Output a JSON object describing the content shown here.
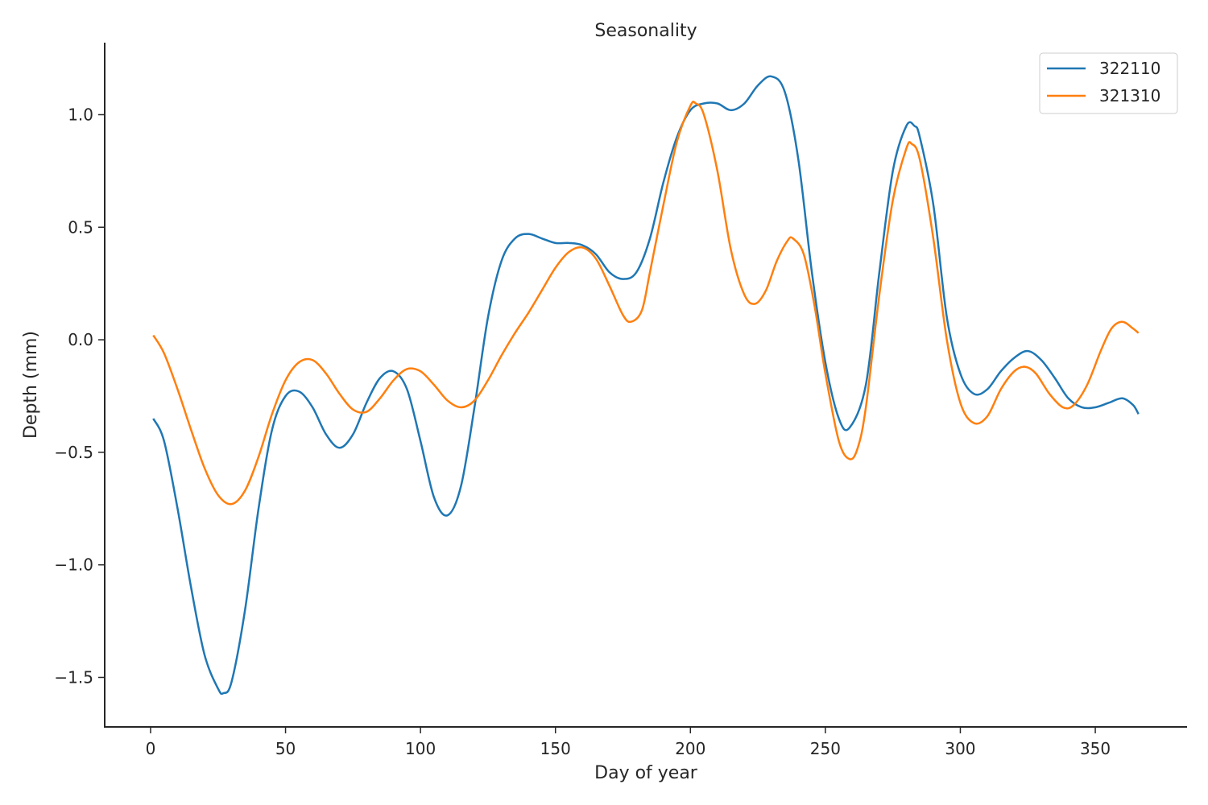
{
  "chart_data": {
    "type": "line",
    "title": "Seasonality",
    "xlabel": "Day of year",
    "ylabel": "Depth (mm)",
    "xlim": [
      -17,
      384
    ],
    "ylim": [
      -1.72,
      1.32
    ],
    "xticks": [
      0,
      50,
      100,
      150,
      200,
      250,
      300,
      350
    ],
    "yticks": [
      -1.5,
      -1.0,
      -0.5,
      0.0,
      0.5,
      1.0
    ],
    "ytick_labels": [
      "−1.5",
      "−1.0",
      "−0.5",
      "0.0",
      "0.5",
      "1.0"
    ],
    "xtick_labels": [
      "0",
      "50",
      "100",
      "150",
      "200",
      "250",
      "300",
      "350"
    ],
    "grid": false,
    "legend_position": "top-right",
    "colors": {
      "series_1": "#1f77b4",
      "series_2": "#ff7f0e",
      "axis": "#262626"
    },
    "series": [
      {
        "name": "322110",
        "color": "#1f77b4",
        "points": [
          [
            1,
            -0.35
          ],
          [
            5,
            -0.45
          ],
          [
            10,
            -0.75
          ],
          [
            15,
            -1.1
          ],
          [
            20,
            -1.4
          ],
          [
            25,
            -1.55
          ],
          [
            27,
            -1.57
          ],
          [
            30,
            -1.52
          ],
          [
            35,
            -1.2
          ],
          [
            40,
            -0.75
          ],
          [
            45,
            -0.4
          ],
          [
            50,
            -0.25
          ],
          [
            55,
            -0.23
          ],
          [
            60,
            -0.3
          ],
          [
            65,
            -0.42
          ],
          [
            70,
            -0.48
          ],
          [
            75,
            -0.42
          ],
          [
            80,
            -0.28
          ],
          [
            85,
            -0.17
          ],
          [
            90,
            -0.14
          ],
          [
            95,
            -0.22
          ],
          [
            100,
            -0.45
          ],
          [
            105,
            -0.7
          ],
          [
            110,
            -0.78
          ],
          [
            115,
            -0.65
          ],
          [
            120,
            -0.3
          ],
          [
            125,
            0.1
          ],
          [
            130,
            0.35
          ],
          [
            135,
            0.45
          ],
          [
            140,
            0.47
          ],
          [
            145,
            0.45
          ],
          [
            150,
            0.43
          ],
          [
            155,
            0.43
          ],
          [
            160,
            0.42
          ],
          [
            165,
            0.38
          ],
          [
            170,
            0.3
          ],
          [
            175,
            0.27
          ],
          [
            180,
            0.3
          ],
          [
            185,
            0.45
          ],
          [
            190,
            0.7
          ],
          [
            195,
            0.9
          ],
          [
            200,
            1.02
          ],
          [
            205,
            1.05
          ],
          [
            210,
            1.05
          ],
          [
            215,
            1.02
          ],
          [
            220,
            1.05
          ],
          [
            225,
            1.13
          ],
          [
            230,
            1.17
          ],
          [
            235,
            1.1
          ],
          [
            240,
            0.8
          ],
          [
            245,
            0.3
          ],
          [
            250,
            -0.1
          ],
          [
            255,
            -0.35
          ],
          [
            259,
            -0.39
          ],
          [
            265,
            -0.2
          ],
          [
            270,
            0.3
          ],
          [
            275,
            0.75
          ],
          [
            280,
            0.95
          ],
          [
            283,
            0.95
          ],
          [
            285,
            0.9
          ],
          [
            290,
            0.6
          ],
          [
            295,
            0.1
          ],
          [
            300,
            -0.15
          ],
          [
            305,
            -0.24
          ],
          [
            310,
            -0.22
          ],
          [
            315,
            -0.14
          ],
          [
            320,
            -0.08
          ],
          [
            325,
            -0.05
          ],
          [
            330,
            -0.09
          ],
          [
            335,
            -0.17
          ],
          [
            340,
            -0.26
          ],
          [
            345,
            -0.3
          ],
          [
            350,
            -0.3
          ],
          [
            355,
            -0.28
          ],
          [
            360,
            -0.26
          ],
          [
            364,
            -0.29
          ],
          [
            366,
            -0.33
          ]
        ]
      },
      {
        "name": "321310",
        "color": "#ff7f0e",
        "points": [
          [
            1,
            0.02
          ],
          [
            5,
            -0.06
          ],
          [
            10,
            -0.22
          ],
          [
            15,
            -0.4
          ],
          [
            20,
            -0.57
          ],
          [
            25,
            -0.69
          ],
          [
            30,
            -0.73
          ],
          [
            35,
            -0.67
          ],
          [
            40,
            -0.52
          ],
          [
            45,
            -0.33
          ],
          [
            50,
            -0.18
          ],
          [
            55,
            -0.1
          ],
          [
            60,
            -0.09
          ],
          [
            65,
            -0.15
          ],
          [
            70,
            -0.24
          ],
          [
            75,
            -0.31
          ],
          [
            80,
            -0.32
          ],
          [
            85,
            -0.26
          ],
          [
            90,
            -0.18
          ],
          [
            95,
            -0.13
          ],
          [
            100,
            -0.14
          ],
          [
            105,
            -0.2
          ],
          [
            110,
            -0.27
          ],
          [
            115,
            -0.3
          ],
          [
            120,
            -0.27
          ],
          [
            125,
            -0.18
          ],
          [
            130,
            -0.07
          ],
          [
            135,
            0.03
          ],
          [
            140,
            0.12
          ],
          [
            145,
            0.22
          ],
          [
            150,
            0.32
          ],
          [
            155,
            0.39
          ],
          [
            160,
            0.41
          ],
          [
            165,
            0.36
          ],
          [
            170,
            0.24
          ],
          [
            175,
            0.11
          ],
          [
            178,
            0.08
          ],
          [
            182,
            0.13
          ],
          [
            185,
            0.3
          ],
          [
            190,
            0.6
          ],
          [
            195,
            0.88
          ],
          [
            200,
            1.04
          ],
          [
            202,
            1.05
          ],
          [
            205,
            1.0
          ],
          [
            210,
            0.75
          ],
          [
            215,
            0.4
          ],
          [
            220,
            0.2
          ],
          [
            224,
            0.16
          ],
          [
            228,
            0.22
          ],
          [
            232,
            0.35
          ],
          [
            236,
            0.44
          ],
          [
            238,
            0.45
          ],
          [
            242,
            0.38
          ],
          [
            246,
            0.15
          ],
          [
            250,
            -0.15
          ],
          [
            255,
            -0.45
          ],
          [
            259,
            -0.53
          ],
          [
            262,
            -0.48
          ],
          [
            265,
            -0.3
          ],
          [
            270,
            0.2
          ],
          [
            275,
            0.62
          ],
          [
            280,
            0.85
          ],
          [
            282,
            0.87
          ],
          [
            285,
            0.8
          ],
          [
            290,
            0.45
          ],
          [
            295,
            0.0
          ],
          [
            300,
            -0.28
          ],
          [
            305,
            -0.37
          ],
          [
            310,
            -0.34
          ],
          [
            315,
            -0.22
          ],
          [
            320,
            -0.14
          ],
          [
            324,
            -0.12
          ],
          [
            328,
            -0.15
          ],
          [
            333,
            -0.24
          ],
          [
            338,
            -0.3
          ],
          [
            342,
            -0.29
          ],
          [
            347,
            -0.2
          ],
          [
            352,
            -0.05
          ],
          [
            356,
            0.05
          ],
          [
            360,
            0.08
          ],
          [
            364,
            0.05
          ],
          [
            366,
            0.03
          ]
        ]
      }
    ]
  }
}
